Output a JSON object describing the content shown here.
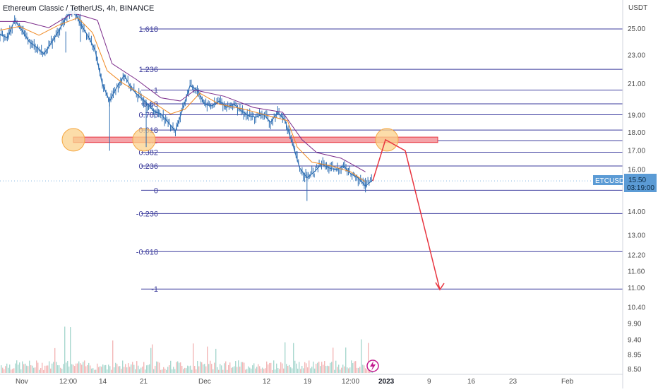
{
  "header": {
    "title": "Ethereum Classic / TetherUS, 4h, BINANCE",
    "currency": "USDT"
  },
  "colors": {
    "fib_line": "#3b3b9e",
    "candle": "#2f6fb3",
    "ma_orange": "#f08a24",
    "ma_purple": "#7a2a8a",
    "arrow": "#e8343f",
    "zone_fill": "#f4a3a8",
    "zone_stroke": "#e8343f",
    "circle_fill": "#fbd28c",
    "circle_stroke": "#f5a742",
    "volume_up": "#a9d8cf",
    "volume_down": "#f3b7b7",
    "badge_bg": "#5b9bd5"
  },
  "chart_data": {
    "type": "line",
    "title": "Ethereum Classic / TetherUS, 4h, BINANCE",
    "y_axis_label": "USDT",
    "y_scale": "log",
    "ylim": [
      8.5,
      27.5
    ],
    "y_ticks": [
      "25.00",
      "23.00",
      "21.00",
      "19.00",
      "18.00",
      "17.00",
      "16.00",
      "14.00",
      "13.00",
      "12.20",
      "11.60",
      "11.00",
      "10.40",
      "9.90",
      "9.40",
      "8.95",
      "8.50"
    ],
    "x_ticks": [
      "Nov",
      "12:00",
      "14",
      "21",
      "Dec",
      "12",
      "19",
      "12:00",
      "2023",
      "9",
      "16",
      "23",
      "Feb"
    ],
    "x_ticks_bold": [
      "2023"
    ],
    "fib_levels": [
      {
        "label": "1.618",
        "price": 25.0
      },
      {
        "label": "1.236",
        "price": 22.0
      },
      {
        "label": "1",
        "price": 20.6
      },
      {
        "label": "0.88",
        "price": 19.72
      },
      {
        "label": "0.786",
        "price": 19.05
      },
      {
        "label": "0.618",
        "price": 18.15
      },
      {
        "label": "0.5",
        "price": 17.55
      },
      {
        "label": "0.382",
        "price": 16.92
      },
      {
        "label": "0.236",
        "price": 16.2
      },
      {
        "label": "0",
        "price": 15.0
      },
      {
        "label": "-0.236",
        "price": 13.93
      },
      {
        "label": "-0.618",
        "price": 12.35
      },
      {
        "label": "-1",
        "price": 10.97
      }
    ],
    "price_series": [
      {
        "t": 0,
        "p": 24.6
      },
      {
        "t": 3,
        "p": 24.3
      },
      {
        "t": 6,
        "p": 25.7
      },
      {
        "t": 9,
        "p": 24.9
      },
      {
        "t": 12,
        "p": 24.0
      },
      {
        "t": 15,
        "p": 23.6
      },
      {
        "t": 18,
        "p": 23.1
      },
      {
        "t": 21,
        "p": 23.9
      },
      {
        "t": 24,
        "p": 24.8
      },
      {
        "t": 27,
        "p": 25.9
      },
      {
        "t": 30,
        "p": 26.7
      },
      {
        "t": 33,
        "p": 25.4
      },
      {
        "t": 36,
        "p": 24.5
      },
      {
        "t": 39,
        "p": 23.4
      },
      {
        "t": 42,
        "p": 21.0
      },
      {
        "t": 45,
        "p": 19.9
      },
      {
        "t": 48,
        "p": 20.8
      },
      {
        "t": 51,
        "p": 21.6
      },
      {
        "t": 54,
        "p": 20.7
      },
      {
        "t": 57,
        "p": 20.2
      },
      {
        "t": 60,
        "p": 19.8
      },
      {
        "t": 63,
        "p": 19.3
      },
      {
        "t": 66,
        "p": 19.1
      },
      {
        "t": 69,
        "p": 18.6
      },
      {
        "t": 72,
        "p": 18.1
      },
      {
        "t": 75,
        "p": 19.4
      },
      {
        "t": 78,
        "p": 20.9
      },
      {
        "t": 81,
        "p": 20.6
      },
      {
        "t": 84,
        "p": 19.7
      },
      {
        "t": 87,
        "p": 19.6
      },
      {
        "t": 90,
        "p": 19.9
      },
      {
        "t": 93,
        "p": 19.5
      },
      {
        "t": 96,
        "p": 19.7
      },
      {
        "t": 99,
        "p": 19.3
      },
      {
        "t": 102,
        "p": 19.0
      },
      {
        "t": 105,
        "p": 18.9
      },
      {
        "t": 108,
        "p": 19.1
      },
      {
        "t": 111,
        "p": 18.6
      },
      {
        "t": 114,
        "p": 19.2
      },
      {
        "t": 117,
        "p": 18.7
      },
      {
        "t": 120,
        "p": 17.4
      },
      {
        "t": 123,
        "p": 16.1
      },
      {
        "t": 126,
        "p": 15.6
      },
      {
        "t": 129,
        "p": 15.9
      },
      {
        "t": 132,
        "p": 16.3
      },
      {
        "t": 135,
        "p": 16.1
      },
      {
        "t": 138,
        "p": 16.0
      },
      {
        "t": 141,
        "p": 16.2
      },
      {
        "t": 144,
        "p": 15.8
      },
      {
        "t": 147,
        "p": 15.6
      },
      {
        "t": 150,
        "p": 15.2
      },
      {
        "t": 153,
        "p": 15.5
      }
    ],
    "ma_orange": [
      {
        "t": 0,
        "p": 24.9
      },
      {
        "t": 8,
        "p": 25.2
      },
      {
        "t": 16,
        "p": 24.5
      },
      {
        "t": 24,
        "p": 25.3
      },
      {
        "t": 32,
        "p": 25.9
      },
      {
        "t": 38,
        "p": 24.7
      },
      {
        "t": 44,
        "p": 21.9
      },
      {
        "t": 50,
        "p": 21.1
      },
      {
        "t": 56,
        "p": 20.5
      },
      {
        "t": 62,
        "p": 19.9
      },
      {
        "t": 70,
        "p": 19.1
      },
      {
        "t": 76,
        "p": 19.4
      },
      {
        "t": 82,
        "p": 20.4
      },
      {
        "t": 90,
        "p": 19.7
      },
      {
        "t": 100,
        "p": 19.4
      },
      {
        "t": 110,
        "p": 19.0
      },
      {
        "t": 118,
        "p": 18.7
      },
      {
        "t": 122,
        "p": 17.2
      },
      {
        "t": 128,
        "p": 16.4
      },
      {
        "t": 136,
        "p": 16.2
      },
      {
        "t": 144,
        "p": 15.9
      },
      {
        "t": 150,
        "p": 15.4
      }
    ],
    "ma_purple": [
      {
        "t": 0,
        "p": 25.6
      },
      {
        "t": 10,
        "p": 25.6
      },
      {
        "t": 20,
        "p": 25.1
      },
      {
        "t": 30,
        "p": 26.3
      },
      {
        "t": 40,
        "p": 25.7
      },
      {
        "t": 46,
        "p": 22.4
      },
      {
        "t": 56,
        "p": 21.3
      },
      {
        "t": 66,
        "p": 20.1
      },
      {
        "t": 74,
        "p": 19.9
      },
      {
        "t": 80,
        "p": 20.6
      },
      {
        "t": 92,
        "p": 20.2
      },
      {
        "t": 104,
        "p": 19.5
      },
      {
        "t": 116,
        "p": 19.2
      },
      {
        "t": 124,
        "p": 17.6
      },
      {
        "t": 130,
        "p": 16.9
      },
      {
        "t": 140,
        "p": 16.6
      },
      {
        "t": 150,
        "p": 15.9
      }
    ],
    "projection_path": [
      {
        "price": 15.45
      },
      {
        "price": 17.6
      },
      {
        "price": 17.0
      },
      {
        "price": 10.95
      }
    ],
    "resistance_zone": {
      "top": 17.75,
      "bottom": 17.45
    },
    "current_price": {
      "symbol": "ETCUSDT",
      "price": "15.50",
      "countdown": "03:19:00"
    }
  }
}
